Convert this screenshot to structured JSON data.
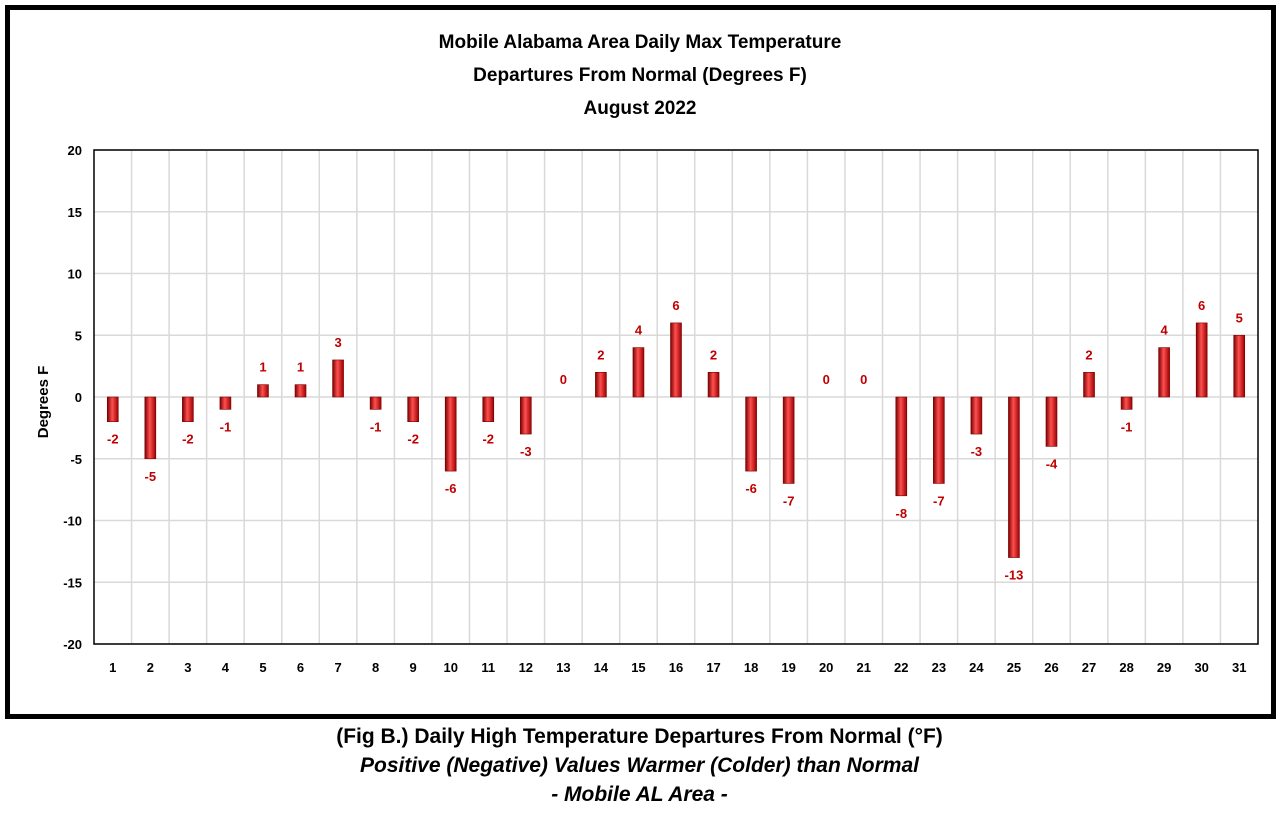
{
  "chart_data": {
    "type": "bar",
    "title": [
      "Mobile Alabama Area Daily Max Temperature",
      "Departures From Normal (Degrees F)",
      "August 2022"
    ],
    "xlabel": "",
    "ylabel": "Degrees F",
    "ylim": [
      -20,
      20
    ],
    "yticks": [
      20,
      15,
      10,
      5,
      0,
      -5,
      -10,
      -15,
      -20
    ],
    "categories": [
      "1",
      "2",
      "3",
      "4",
      "5",
      "6",
      "7",
      "8",
      "9",
      "10",
      "11",
      "12",
      "13",
      "14",
      "15",
      "16",
      "17",
      "18",
      "19",
      "20",
      "21",
      "22",
      "23",
      "24",
      "25",
      "26",
      "27",
      "28",
      "29",
      "30",
      "31"
    ],
    "values": [
      -2,
      -5,
      -2,
      -1,
      1,
      1,
      3,
      -1,
      -2,
      -6,
      -2,
      -3,
      0,
      2,
      4,
      6,
      2,
      -6,
      -7,
      0,
      0,
      -8,
      -7,
      -3,
      -13,
      -4,
      2,
      -1,
      4,
      6,
      5
    ],
    "grid": true,
    "legend": "none",
    "colors": {
      "bar": "#cc0000",
      "bar_highlight": "#ff5050",
      "bar_dark": "#7a0000",
      "label": "#c00000",
      "grid": "#d9d9d9"
    }
  },
  "caption": {
    "line1": "(Fig B.) Daily High Temperature Departures From Normal (°F)",
    "line2": "Positive (Negative) Values Warmer (Colder) than Normal",
    "line3": "- Mobile AL Area -"
  }
}
